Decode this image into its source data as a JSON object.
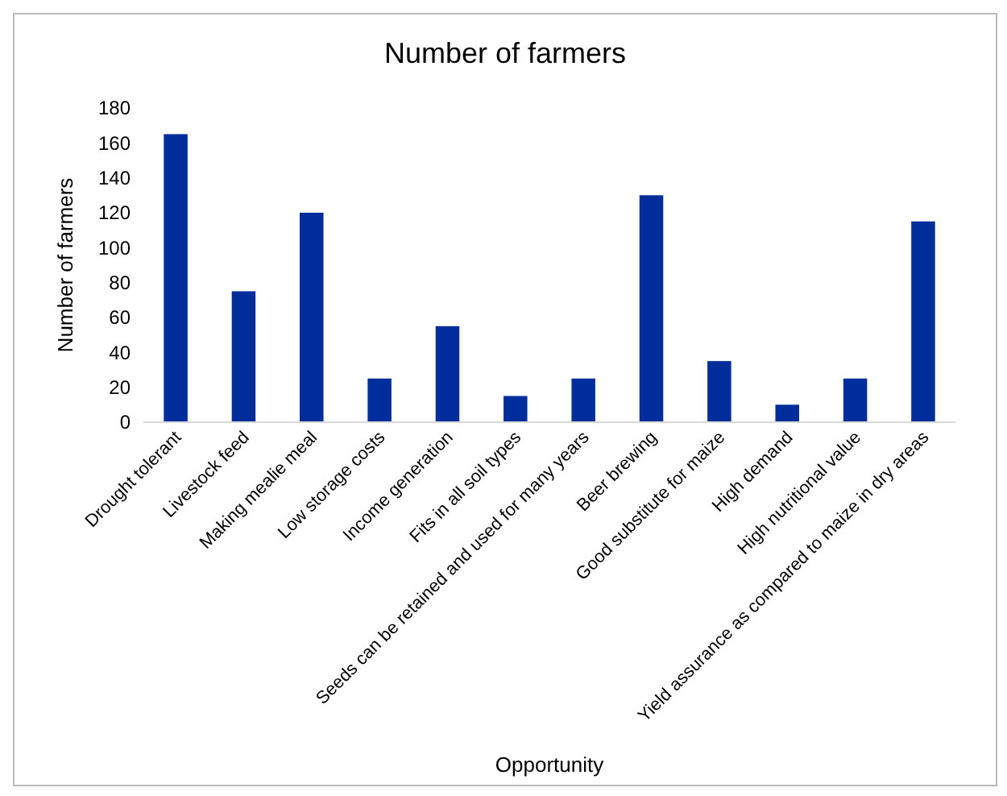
{
  "chart_data": {
    "type": "bar",
    "title": "Number of farmers",
    "xlabel": "Opportunity",
    "ylabel": "Number of farmers",
    "categories": [
      "Drought tolerant",
      "Livestock feed",
      "Making mealie meal",
      "Low storage costs",
      "Income generation",
      "Fits in all soil types",
      "Seeds can be retained and used for many years",
      "Beer brewing",
      "Good substitute for maize",
      "High demand",
      "High nutritional value",
      "Yield assurance as compared to maize in dry areas"
    ],
    "values": [
      165,
      75,
      120,
      25,
      55,
      15,
      25,
      130,
      35,
      10,
      25,
      115
    ],
    "color": "#002d9c",
    "ylim": [
      0,
      180
    ],
    "yticks": [
      0,
      20,
      40,
      60,
      80,
      100,
      120,
      140,
      160,
      180
    ],
    "grid": false
  }
}
